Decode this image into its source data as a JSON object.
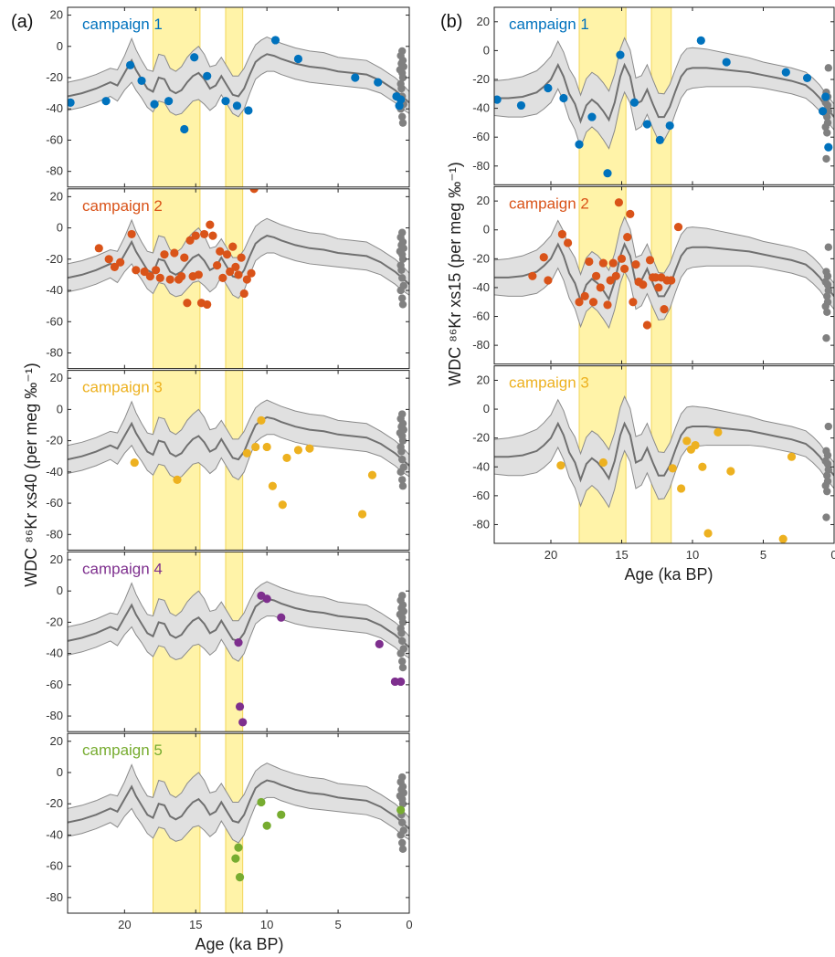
{
  "figure": {
    "panel_a_label": "(a)",
    "panel_b_label": "(b)",
    "xlabel": "Age (ka BP)",
    "ylabel_a": "WDC ⁸⁶Kr xs40 (per meg ‰⁻¹)",
    "ylabel_b": "WDC ⁸⁶Kr xs15 (per meg ‰⁻¹)"
  },
  "colors": {
    "curve": "#707070",
    "band_fill": "#e0e0e0",
    "band_edge": "#8a8a8a",
    "highlight": "#fff3a8",
    "highlight_edge": "#f2d65a",
    "gray_points": "#808080",
    "campaign_1": "#0072bd",
    "campaign_2": "#d95319",
    "campaign_3": "#edb120",
    "campaign_4": "#7e2f8e",
    "campaign_5": "#77ac30"
  },
  "chart_data": [
    {
      "type": "scatter",
      "panel": "(a)",
      "xlabel": "Age (ka BP)",
      "ylabel": "WDC 86Kr xs40 (per meg ‰-1)",
      "xlim": [
        24,
        0
      ],
      "ylim": [
        -90,
        25
      ],
      "x_ticks": [
        20,
        15,
        10,
        5,
        0
      ],
      "y_ticks": [
        20,
        0,
        -20,
        -40,
        -60,
        -80
      ],
      "shaded_intervals": [
        [
          18.0,
          14.7
        ],
        [
          12.9,
          11.7
        ]
      ],
      "model_curve": {
        "x": [
          24,
          23,
          22,
          21,
          20.5,
          20,
          19.5,
          19.2,
          18.8,
          18.4,
          18,
          17.6,
          17.2,
          16.8,
          16.4,
          16,
          15.6,
          15.2,
          14.8,
          14.4,
          14,
          13.6,
          13.2,
          12.8,
          12.4,
          12,
          11.6,
          11.2,
          10.8,
          10.4,
          10,
          9.5,
          9,
          8,
          7,
          6,
          5,
          4,
          3,
          2,
          1.5,
          1,
          0.5,
          0
        ],
        "y": [
          -32,
          -30,
          -27,
          -23,
          -25,
          -17,
          -9,
          -15,
          -21,
          -27,
          -29,
          -20,
          -21,
          -28,
          -30,
          -28,
          -23,
          -19,
          -17,
          -21,
          -27,
          -25,
          -19,
          -25,
          -31,
          -32,
          -27,
          -18,
          -10,
          -7,
          -5,
          -6,
          -8,
          -11,
          -13,
          -14,
          -16,
          -17,
          -18,
          -22,
          -25,
          -28,
          -32,
          -36
        ],
        "band_halfwidth": [
          9,
          9,
          9,
          9,
          10,
          11,
          14,
          13,
          12,
          12,
          13,
          15,
          15,
          14,
          14,
          15,
          16,
          16,
          17,
          16,
          14,
          13,
          12,
          12,
          12,
          13,
          13,
          12,
          11,
          11,
          11,
          10,
          10,
          10,
          10,
          10,
          9,
          9,
          9,
          8,
          8,
          8,
          8,
          7
        ]
      },
      "gray_points": {
        "x": [
          0.5,
          0.6,
          0.45,
          0.55,
          0.4,
          0.65,
          0.5,
          0.45,
          0.6,
          0.55,
          0.5,
          0.4,
          0.6,
          0.5,
          0.45
        ],
        "y": [
          -3,
          -6,
          -9,
          -11,
          -13,
          -15,
          -17,
          -20,
          -24,
          -27,
          -32,
          -37,
          -40,
          -45,
          -49
        ]
      },
      "series": [
        {
          "name": "campaign 1",
          "color": "#0072bd",
          "x": [
            23.8,
            21.3,
            19.6,
            18.8,
            17.9,
            16.9,
            15.8,
            15.1,
            14.2,
            12.9,
            12.1,
            11.3,
            9.4,
            7.8,
            3.8,
            2.2,
            0.9,
            0.7,
            0.6
          ],
          "y": [
            -36,
            -35,
            -12,
            -22,
            -37,
            -35,
            -53,
            -7,
            -19,
            -35,
            -38,
            -41,
            4,
            -8,
            -20,
            -23,
            -32,
            -38,
            -34
          ]
        },
        {
          "name": "campaign 2",
          "color": "#d95319",
          "x": [
            21.8,
            21.1,
            20.7,
            20.3,
            19.5,
            19.2,
            18.6,
            18.2,
            17.8,
            17.5,
            17.2,
            16.8,
            16.5,
            16.2,
            16.0,
            15.8,
            15.6,
            15.4,
            15.2,
            15.0,
            14.8,
            14.6,
            14.4,
            14.2,
            14.0,
            13.8,
            13.5,
            13.3,
            13.1,
            12.8,
            12.6,
            12.4,
            12.2,
            12.0,
            11.8,
            11.6,
            11.4,
            11.1,
            10.9
          ],
          "y": [
            -13,
            -20,
            -25,
            -22,
            -4,
            -27,
            -28,
            -31,
            -27,
            -32,
            -17,
            -33,
            -16,
            -33,
            -31,
            -19,
            -48,
            -8,
            -31,
            -5,
            -30,
            -48,
            -4,
            -49,
            2,
            -5,
            -24,
            -15,
            -32,
            -17,
            -28,
            -12,
            -25,
            -30,
            -19,
            -42,
            -33,
            -29,
            25
          ]
        },
        {
          "name": "campaign 3",
          "color": "#edb120",
          "x": [
            19.3,
            16.3,
            11.4,
            10.8,
            10.4,
            10.0,
            9.6,
            8.9,
            8.6,
            7.8,
            7.0,
            3.3,
            2.6
          ],
          "y": [
            -34,
            -45,
            -28,
            -24,
            -7,
            -24,
            -49,
            -61,
            -31,
            -26,
            -25,
            -67,
            -42
          ]
        },
        {
          "name": "campaign 4",
          "color": "#7e2f8e",
          "x": [
            12.0,
            11.9,
            11.7,
            10.4,
            10.0,
            9.0,
            2.1,
            1.0,
            0.6
          ],
          "y": [
            -33,
            -74,
            -84,
            -3,
            -5,
            -17,
            -34,
            -58,
            -58
          ]
        },
        {
          "name": "campaign 5",
          "color": "#77ac30",
          "x": [
            12.2,
            12.0,
            11.9,
            10.4,
            10.0,
            9.0,
            0.6
          ],
          "y": [
            -55,
            -48,
            -67,
            -19,
            -34,
            -27,
            -24
          ]
        }
      ]
    },
    {
      "type": "scatter",
      "panel": "(b)",
      "xlabel": "Age (ka BP)",
      "ylabel": "WDC 86Kr xs15 (per meg ‰-1)",
      "xlim": [
        24,
        0
      ],
      "ylim": [
        -93,
        30
      ],
      "x_ticks": [
        20,
        15,
        10,
        5,
        0
      ],
      "y_ticks": [
        20,
        0,
        -20,
        -40,
        -60,
        -80
      ],
      "shaded_intervals": [
        [
          18.0,
          14.7
        ],
        [
          12.9,
          11.5
        ]
      ],
      "model_curve": {
        "x": [
          24,
          23,
          22,
          21,
          20.5,
          20,
          19.5,
          19.1,
          18.7,
          18.3,
          17.9,
          17.5,
          17.1,
          16.7,
          16.3,
          15.9,
          15.5,
          15.1,
          14.8,
          14.4,
          14,
          13.6,
          13.2,
          12.8,
          12.4,
          12,
          11.6,
          11.2,
          10.8,
          10.4,
          10,
          9.5,
          9,
          8,
          7,
          6,
          5,
          4,
          3,
          2,
          1.5,
          1,
          0.5,
          0
        ],
        "y": [
          -33,
          -33,
          -32,
          -29,
          -25,
          -20,
          -10,
          -18,
          -30,
          -37,
          -49,
          -38,
          -34,
          -37,
          -42,
          -48,
          -36,
          -18,
          -10,
          -18,
          -37,
          -35,
          -27,
          -37,
          -46,
          -46,
          -39,
          -28,
          -18,
          -13,
          -12,
          -12,
          -12,
          -13,
          -14,
          -15,
          -17,
          -19,
          -21,
          -24,
          -28,
          -33,
          -40,
          -46
        ]
      },
      "gray_points": {
        "x": [
          0.4,
          0.55,
          0.45,
          0.6,
          0.5,
          0.45,
          0.6,
          0.5,
          0.55,
          0.45,
          0.4
        ],
        "y": [
          -12,
          -29,
          -32,
          -36,
          -46,
          -50,
          -53,
          -57,
          -75,
          -38,
          -42
        ]
      },
      "series": [
        {
          "name": "campaign 1",
          "color": "#0072bd",
          "x": [
            23.8,
            22.1,
            20.2,
            19.1,
            18.0,
            17.1,
            16.0,
            15.1,
            14.1,
            13.2,
            12.3,
            11.6,
            9.4,
            7.6,
            3.4,
            1.9,
            0.8,
            0.6,
            0.4
          ],
          "y": [
            -34,
            -38,
            -26,
            -33,
            -65,
            -46,
            -85,
            -3,
            -36,
            -51,
            -62,
            -52,
            7,
            -8,
            -15,
            -19,
            -42,
            -32,
            -67
          ]
        },
        {
          "name": "campaign 2",
          "color": "#d95319",
          "x": [
            21.3,
            20.5,
            20.2,
            19.2,
            18.8,
            18.0,
            17.6,
            17.3,
            17.0,
            16.8,
            16.5,
            16.3,
            16.0,
            15.8,
            15.6,
            15.4,
            15.2,
            15.0,
            14.8,
            14.6,
            14.4,
            14.2,
            14.0,
            13.8,
            13.5,
            13.2,
            13.0,
            12.8,
            12.6,
            12.4,
            12.2,
            12.0,
            11.8,
            11.5,
            11.0
          ],
          "y": [
            -32,
            -19,
            -35,
            -3,
            -9,
            -50,
            -46,
            -22,
            -50,
            -32,
            -40,
            -23,
            -52,
            -35,
            -23,
            -32,
            19,
            -20,
            -27,
            -5,
            11,
            -50,
            -24,
            -36,
            -38,
            -66,
            -21,
            -33,
            -33,
            -40,
            -33,
            -55,
            -35,
            -35,
            2
          ]
        },
        {
          "name": "campaign 3",
          "color": "#edb120",
          "x": [
            19.3,
            16.3,
            11.4,
            10.8,
            10.4,
            10.1,
            9.8,
            9.3,
            8.9,
            8.2,
            7.3,
            3.6,
            3.0
          ],
          "y": [
            -39,
            -37,
            -41,
            -55,
            -22,
            -28,
            -25,
            -40,
            -86,
            -16,
            -43,
            -90,
            -33
          ]
        }
      ]
    }
  ]
}
